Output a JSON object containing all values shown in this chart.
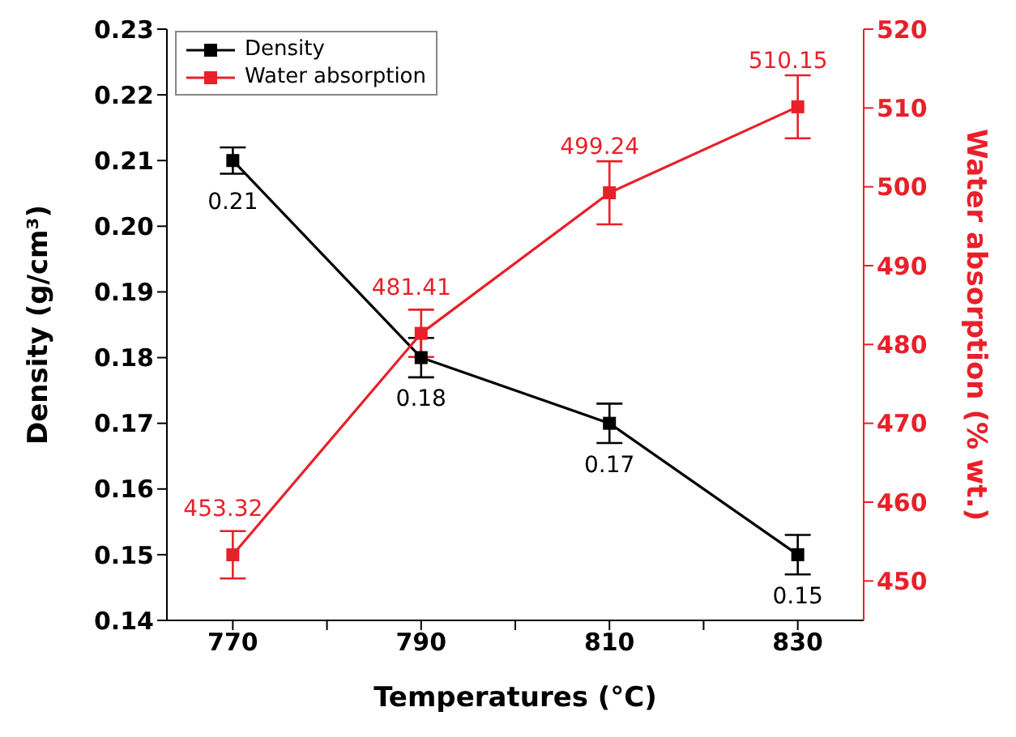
{
  "chart_data": {
    "type": "line",
    "xlabel": "Temperatures (°C)",
    "ylabel": "Density (g/cm³)",
    "y2label": "Water absorption (% wt.)",
    "x": [
      770,
      790,
      810,
      830
    ],
    "xlim": [
      763,
      837
    ],
    "xticks": [
      770,
      {
        "value": 780,
        "label": null
      },
      790,
      {
        "value": 800,
        "label": null
      },
      810,
      {
        "value": 820,
        "label": null
      },
      830
    ],
    "ylim": [
      0.14,
      0.23
    ],
    "yticks": [
      0.14,
      0.15,
      0.16,
      0.17,
      0.18,
      0.19,
      {
        "value": 0.2,
        "label": "0.20"
      },
      0.21,
      0.22,
      0.23
    ],
    "y2lim": [
      445,
      520
    ],
    "y2ticks": [
      450,
      460,
      470,
      480,
      490,
      500,
      510,
      520
    ],
    "series": [
      {
        "name": "Density",
        "color": "#000000",
        "values": [
          0.21,
          0.18,
          0.17,
          0.15
        ],
        "errors": [
          0.002,
          0.003,
          0.003,
          0.003
        ]
      },
      {
        "name": "Water absorption",
        "color": "#e8202a",
        "axis": "y2",
        "values": [
          453.32,
          481.41,
          499.24,
          510.15
        ],
        "errors": [
          3,
          3,
          4,
          4
        ]
      }
    ],
    "data_labels": true,
    "marker": "square",
    "line_style": "solid",
    "grid": false,
    "legend": "top left"
  }
}
